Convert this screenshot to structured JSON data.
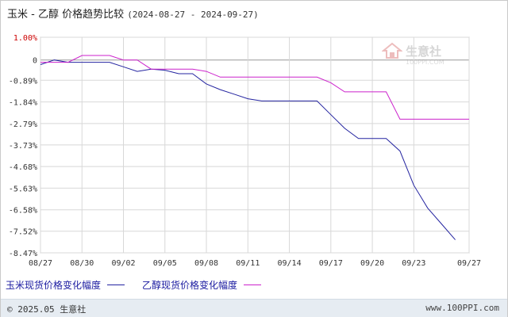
{
  "title": {
    "text": "玉米 - 乙醇 价格趋势比较",
    "range": "(2024-08-27 - 2024-09-27)"
  },
  "watermark": {
    "brand": "生意社",
    "url": "100PPI.COM"
  },
  "footer": {
    "copyright": "© 2025.05 生意社",
    "site": "www.100PPI.com"
  },
  "colors": {
    "corn": "#2424a0",
    "ethanol": "#cc22cc",
    "grid": "#d8d8d8",
    "zero_line": "#999999",
    "axis_text": "#cc0000"
  },
  "chart_data": {
    "type": "line",
    "title": "玉米 - 乙醇 价格趋势比较",
    "ylim": [
      -8.47,
      1.0
    ],
    "yticks": [
      "1.00%",
      "0",
      "-0.89%",
      "-1.84%",
      "-2.79%",
      "-3.73%",
      "-4.68%",
      "-5.63%",
      "-6.58%",
      "-7.52%",
      "-8.47%"
    ],
    "ytick_values": [
      1.0,
      0,
      -0.89,
      -1.84,
      -2.79,
      -3.73,
      -4.68,
      -5.63,
      -6.58,
      -7.52,
      -8.47
    ],
    "x_start": "2024-08-27",
    "x_end": "2024-09-27",
    "xticks": [
      "08/27",
      "08/30",
      "09/02",
      "09/05",
      "09/08",
      "09/11",
      "09/14",
      "09/17",
      "09/20",
      "09/23",
      "09/27"
    ],
    "xtick_dates": [
      "2024-08-27",
      "2024-08-30",
      "2024-09-02",
      "2024-09-05",
      "2024-09-08",
      "2024-09-11",
      "2024-09-14",
      "2024-09-17",
      "2024-09-20",
      "2024-09-23",
      "2024-09-27"
    ],
    "grid": true,
    "legend_position": "bottom",
    "series": [
      {
        "name": "玉米现货价格变化幅度",
        "color": "#2424a0",
        "points": [
          [
            "2024-08-27",
            -0.2
          ],
          [
            "2024-08-28",
            0.0
          ],
          [
            "2024-08-29",
            -0.1
          ],
          [
            "2024-08-30",
            -0.1
          ],
          [
            "2024-09-01",
            -0.1
          ],
          [
            "2024-09-02",
            -0.3
          ],
          [
            "2024-09-03",
            -0.5
          ],
          [
            "2024-09-04",
            -0.4
          ],
          [
            "2024-09-05",
            -0.45
          ],
          [
            "2024-09-06",
            -0.6
          ],
          [
            "2024-09-07",
            -0.6
          ],
          [
            "2024-09-08",
            -1.05
          ],
          [
            "2024-09-09",
            -1.3
          ],
          [
            "2024-09-10",
            -1.5
          ],
          [
            "2024-09-11",
            -1.7
          ],
          [
            "2024-09-12",
            -1.8
          ],
          [
            "2024-09-13",
            -1.8
          ],
          [
            "2024-09-15",
            -1.8
          ],
          [
            "2024-09-16",
            -1.8
          ],
          [
            "2024-09-17",
            -2.4
          ],
          [
            "2024-09-18",
            -3.0
          ],
          [
            "2024-09-19",
            -3.45
          ],
          [
            "2024-09-20",
            -3.45
          ],
          [
            "2024-09-21",
            -3.45
          ],
          [
            "2024-09-22",
            -4.0
          ],
          [
            "2024-09-23",
            -5.5
          ],
          [
            "2024-09-24",
            -6.5
          ],
          [
            "2024-09-25",
            -7.2
          ],
          [
            "2024-09-26",
            -7.9
          ]
        ]
      },
      {
        "name": "乙醇现货价格变化幅度",
        "color": "#cc22cc",
        "points": [
          [
            "2024-08-27",
            -0.1
          ],
          [
            "2024-08-28",
            -0.1
          ],
          [
            "2024-08-29",
            -0.1
          ],
          [
            "2024-08-30",
            0.2
          ],
          [
            "2024-09-01",
            0.2
          ],
          [
            "2024-09-02",
            0.0
          ],
          [
            "2024-09-03",
            0.0
          ],
          [
            "2024-09-04",
            -0.4
          ],
          [
            "2024-09-06",
            -0.4
          ],
          [
            "2024-09-07",
            -0.4
          ],
          [
            "2024-09-08",
            -0.5
          ],
          [
            "2024-09-09",
            -0.75
          ],
          [
            "2024-09-16",
            -0.75
          ],
          [
            "2024-09-17",
            -1.0
          ],
          [
            "2024-09-18",
            -1.4
          ],
          [
            "2024-09-19",
            -1.4
          ],
          [
            "2024-09-20",
            -1.4
          ],
          [
            "2024-09-21",
            -1.4
          ],
          [
            "2024-09-22",
            -2.6
          ],
          [
            "2024-09-27",
            -2.6
          ]
        ]
      }
    ]
  }
}
